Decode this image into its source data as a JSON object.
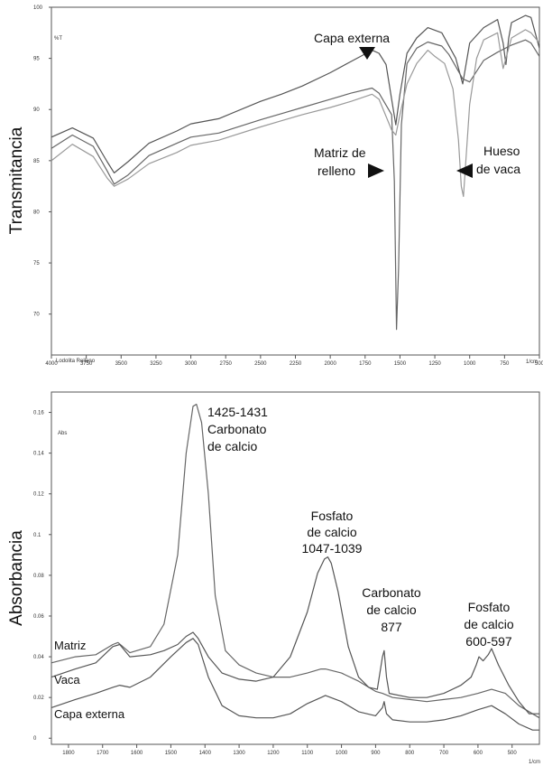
{
  "chart_data": [
    {
      "type": "line",
      "ylabel": "Transmitancia",
      "y_unit": "%T",
      "footer_left": "Lodolita Relleno",
      "footer_right": "1/cm",
      "xlim": [
        4000,
        500
      ],
      "ylim": [
        66,
        100
      ],
      "x_ticks": [
        "4000",
        "3750",
        "3500",
        "3250",
        "3000",
        "2750",
        "2500",
        "2250",
        "2000",
        "1750",
        "1500",
        "1250",
        "1000",
        "750",
        "500"
      ],
      "y_ticks": [
        {
          "value": 100,
          "label": "100"
        },
        {
          "value": 95,
          "label": "95"
        },
        {
          "value": 90,
          "label": "90"
        },
        {
          "value": 85,
          "label": "85"
        },
        {
          "value": 80,
          "label": "80"
        },
        {
          "value": 75,
          "label": "75"
        },
        {
          "value": 70,
          "label": "70"
        }
      ],
      "series": [
        {
          "points": [
            [
              4000,
              87.3
            ],
            [
              3850,
              88.2
            ],
            [
              3700,
              87.2
            ],
            [
              3600,
              84.9
            ],
            [
              3550,
              83.8
            ],
            [
              3450,
              84.9
            ],
            [
              3300,
              86.7
            ],
            [
              3100,
              87.9
            ],
            [
              3000,
              88.6
            ],
            [
              2800,
              89.1
            ],
            [
              2500,
              90.8
            ],
            [
              2350,
              91.5
            ],
            [
              2200,
              92.3
            ],
            [
              2000,
              93.6
            ],
            [
              1850,
              94.7
            ],
            [
              1700,
              95.8
            ],
            [
              1650,
              95.5
            ],
            [
              1600,
              94.4
            ],
            [
              1560,
              91.0
            ],
            [
              1530,
              88.5
            ],
            [
              1500,
              91.5
            ],
            [
              1450,
              95.5
            ],
            [
              1380,
              97.0
            ],
            [
              1300,
              98.0
            ],
            [
              1200,
              97.5
            ],
            [
              1100,
              95.0
            ],
            [
              1050,
              92.5
            ],
            [
              1000,
              96.5
            ],
            [
              900,
              98.0
            ],
            [
              800,
              98.8
            ],
            [
              760,
              96.5
            ],
            [
              740,
              94.4
            ],
            [
              720,
              97.0
            ],
            [
              700,
              98.5
            ],
            [
              600,
              99.2
            ],
            [
              560,
              99.0
            ],
            [
              500,
              96.0
            ]
          ]
        },
        {
          "points": [
            [
              4000,
              86.2
            ],
            [
              3850,
              87.5
            ],
            [
              3700,
              86.4
            ],
            [
              3600,
              84.0
            ],
            [
              3550,
              82.7
            ],
            [
              3450,
              83.6
            ],
            [
              3300,
              85.5
            ],
            [
              3100,
              86.7
            ],
            [
              3000,
              87.3
            ],
            [
              2800,
              87.7
            ],
            [
              2500,
              89.0
            ],
            [
              2350,
              89.6
            ],
            [
              2200,
              90.2
            ],
            [
              2000,
              91.0
            ],
            [
              1850,
              91.6
            ],
            [
              1700,
              92.1
            ],
            [
              1650,
              91.6
            ],
            [
              1560,
              89.5
            ],
            [
              1540,
              83.0
            ],
            [
              1525,
              68.5
            ],
            [
              1510,
              74.5
            ],
            [
              1490,
              88.5
            ],
            [
              1450,
              94.5
            ],
            [
              1380,
              96.0
            ],
            [
              1300,
              96.6
            ],
            [
              1200,
              96.2
            ],
            [
              1150,
              95.4
            ],
            [
              1100,
              94.2
            ],
            [
              1050,
              93.0
            ],
            [
              1000,
              92.7
            ],
            [
              900,
              94.8
            ],
            [
              800,
              95.6
            ],
            [
              700,
              96.3
            ],
            [
              600,
              96.8
            ],
            [
              560,
              96.5
            ],
            [
              500,
              95.2
            ]
          ]
        },
        {
          "points": [
            [
              4000,
              85.0
            ],
            [
              3850,
              86.6
            ],
            [
              3700,
              85.4
            ],
            [
              3600,
              83.3
            ],
            [
              3550,
              82.5
            ],
            [
              3450,
              83.2
            ],
            [
              3300,
              84.7
            ],
            [
              3100,
              85.8
            ],
            [
              3000,
              86.5
            ],
            [
              2800,
              87.0
            ],
            [
              2500,
              88.3
            ],
            [
              2350,
              88.9
            ],
            [
              2200,
              89.5
            ],
            [
              2000,
              90.2
            ],
            [
              1850,
              90.8
            ],
            [
              1700,
              91.5
            ],
            [
              1650,
              91.0
            ],
            [
              1560,
              88.0
            ],
            [
              1530,
              87.5
            ],
            [
              1500,
              89.5
            ],
            [
              1450,
              92.5
            ],
            [
              1380,
              94.5
            ],
            [
              1300,
              95.8
            ],
            [
              1250,
              95.2
            ],
            [
              1180,
              94.5
            ],
            [
              1120,
              92.0
            ],
            [
              1080,
              87.0
            ],
            [
              1060,
              82.5
            ],
            [
              1045,
              81.5
            ],
            [
              1030,
              84.5
            ],
            [
              1000,
              90.5
            ],
            [
              950,
              95.0
            ],
            [
              900,
              96.8
            ],
            [
              800,
              97.5
            ],
            [
              760,
              94.0
            ],
            [
              700,
              97.0
            ],
            [
              600,
              97.8
            ],
            [
              560,
              97.5
            ],
            [
              500,
              96.5
            ]
          ]
        }
      ],
      "annotations": [
        {
          "lines": [
            "Capa externa"
          ],
          "arrow": "down"
        },
        {
          "lines": [
            "Matriz de",
            "relleno"
          ],
          "arrow": "right"
        },
        {
          "lines": [
            "Hueso",
            "de vaca"
          ],
          "arrow": "left"
        }
      ]
    },
    {
      "type": "line",
      "ylabel": "Absorbancia",
      "y_unit": "Abs",
      "footer_right": "1/cm",
      "xlim": [
        1850,
        420
      ],
      "ylim": [
        -0.003,
        0.17
      ],
      "x_ticks": [
        "1800",
        "1700",
        "1600",
        "1500",
        "1400",
        "1300",
        "1200",
        "1100",
        "1000",
        "900",
        "800",
        "700",
        "600",
        "500"
      ],
      "y_ticks": [
        {
          "value": 0.16,
          "label": "0.16"
        },
        {
          "value": 0.14,
          "label": "0.14"
        },
        {
          "value": 0.12,
          "label": "0.12"
        },
        {
          "value": 0.1,
          "label": "0.1"
        },
        {
          "value": 0.08,
          "label": "0.08"
        },
        {
          "value": 0.06,
          "label": "0.06"
        },
        {
          "value": 0.04,
          "label": "0.04"
        },
        {
          "value": 0.02,
          "label": "0.02"
        },
        {
          "value": 0,
          "label": "0"
        }
      ],
      "series": [
        {
          "name": "Matriz",
          "points": [
            [
              1850,
              0.037
            ],
            [
              1780,
              0.04
            ],
            [
              1720,
              0.041
            ],
            [
              1670,
              0.046
            ],
            [
              1655,
              0.047
            ],
            [
              1620,
              0.042
            ],
            [
              1560,
              0.045
            ],
            [
              1520,
              0.056
            ],
            [
              1480,
              0.09
            ],
            [
              1455,
              0.14
            ],
            [
              1435,
              0.163
            ],
            [
              1425,
              0.164
            ],
            [
              1410,
              0.155
            ],
            [
              1390,
              0.12
            ],
            [
              1370,
              0.07
            ],
            [
              1340,
              0.043
            ],
            [
              1300,
              0.036
            ],
            [
              1250,
              0.032
            ],
            [
              1200,
              0.03
            ],
            [
              1150,
              0.03
            ],
            [
              1100,
              0.032
            ],
            [
              1060,
              0.034
            ],
            [
              1047,
              0.034
            ],
            [
              1000,
              0.032
            ],
            [
              950,
              0.028
            ],
            [
              900,
              0.023
            ],
            [
              880,
              0.022
            ],
            [
              850,
              0.02
            ],
            [
              800,
              0.019
            ],
            [
              750,
              0.018
            ],
            [
              700,
              0.019
            ],
            [
              650,
              0.02
            ],
            [
              600,
              0.022
            ],
            [
              560,
              0.024
            ],
            [
              520,
              0.022
            ],
            [
              480,
              0.016
            ],
            [
              440,
              0.012
            ],
            [
              420,
              0.01
            ]
          ]
        },
        {
          "name": "Vaca",
          "points": [
            [
              1850,
              0.03
            ],
            [
              1780,
              0.034
            ],
            [
              1720,
              0.037
            ],
            [
              1670,
              0.045
            ],
            [
              1650,
              0.046
            ],
            [
              1620,
              0.04
            ],
            [
              1560,
              0.041
            ],
            [
              1520,
              0.043
            ],
            [
              1480,
              0.046
            ],
            [
              1455,
              0.05
            ],
            [
              1435,
              0.052
            ],
            [
              1420,
              0.049
            ],
            [
              1390,
              0.04
            ],
            [
              1350,
              0.032
            ],
            [
              1300,
              0.029
            ],
            [
              1250,
              0.028
            ],
            [
              1200,
              0.03
            ],
            [
              1150,
              0.04
            ],
            [
              1100,
              0.062
            ],
            [
              1070,
              0.081
            ],
            [
              1050,
              0.088
            ],
            [
              1040,
              0.089
            ],
            [
              1030,
              0.086
            ],
            [
              1010,
              0.072
            ],
            [
              980,
              0.045
            ],
            [
              950,
              0.03
            ],
            [
              920,
              0.025
            ],
            [
              895,
              0.024
            ],
            [
              880,
              0.04
            ],
            [
              875,
              0.043
            ],
            [
              868,
              0.03
            ],
            [
              860,
              0.022
            ],
            [
              800,
              0.02
            ],
            [
              750,
              0.02
            ],
            [
              700,
              0.022
            ],
            [
              650,
              0.026
            ],
            [
              620,
              0.03
            ],
            [
              605,
              0.036
            ],
            [
              597,
              0.04
            ],
            [
              585,
              0.038
            ],
            [
              570,
              0.041
            ],
            [
              560,
              0.044
            ],
            [
              540,
              0.036
            ],
            [
              510,
              0.026
            ],
            [
              480,
              0.018
            ],
            [
              450,
              0.012
            ],
            [
              420,
              0.012
            ]
          ]
        },
        {
          "name": "Capa externa",
          "points": [
            [
              1850,
              0.015
            ],
            [
              1780,
              0.019
            ],
            [
              1720,
              0.022
            ],
            [
              1670,
              0.025
            ],
            [
              1650,
              0.026
            ],
            [
              1620,
              0.025
            ],
            [
              1560,
              0.03
            ],
            [
              1500,
              0.04
            ],
            [
              1455,
              0.047
            ],
            [
              1435,
              0.049
            ],
            [
              1420,
              0.046
            ],
            [
              1390,
              0.03
            ],
            [
              1350,
              0.016
            ],
            [
              1300,
              0.011
            ],
            [
              1250,
              0.01
            ],
            [
              1200,
              0.01
            ],
            [
              1150,
              0.012
            ],
            [
              1100,
              0.017
            ],
            [
              1060,
              0.02
            ],
            [
              1047,
              0.021
            ],
            [
              1000,
              0.018
            ],
            [
              950,
              0.013
            ],
            [
              900,
              0.011
            ],
            [
              880,
              0.015
            ],
            [
              875,
              0.018
            ],
            [
              868,
              0.012
            ],
            [
              850,
              0.009
            ],
            [
              800,
              0.008
            ],
            [
              750,
              0.008
            ],
            [
              700,
              0.009
            ],
            [
              650,
              0.011
            ],
            [
              600,
              0.014
            ],
            [
              560,
              0.016
            ],
            [
              520,
              0.012
            ],
            [
              480,
              0.007
            ],
            [
              440,
              0.004
            ],
            [
              420,
              0.004
            ]
          ]
        }
      ],
      "annotations": [
        {
          "lines": [
            "1425-1431",
            "Carbonato",
            "de calcio"
          ]
        },
        {
          "lines": [
            "Fosfato",
            "de calcio",
            "1047-1039"
          ]
        },
        {
          "lines": [
            "Carbonato",
            "de calcio",
            "877"
          ]
        },
        {
          "lines": [
            "Fosfato",
            "de calcio",
            "600-597"
          ]
        }
      ]
    }
  ]
}
